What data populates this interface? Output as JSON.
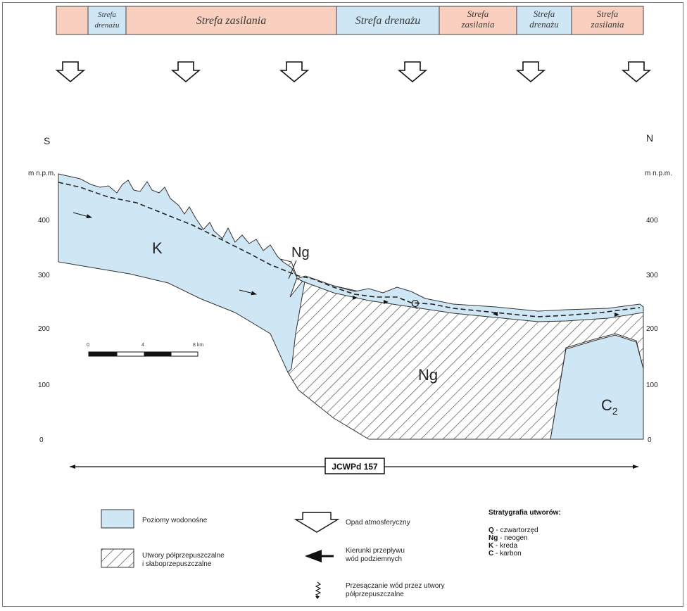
{
  "zones": [
    {
      "lines": [
        ""
      ],
      "kind": "zasilania"
    },
    {
      "lines": [
        "Strefa",
        "drenażu"
      ],
      "kind": "drenazu"
    },
    {
      "lines": [
        "Strefa zasilania"
      ],
      "kind": "zasilania"
    },
    {
      "lines": [
        "Strefa drenażu"
      ],
      "kind": "drenazu"
    },
    {
      "lines": [
        "Strefa",
        "zasilania"
      ],
      "kind": "zasilania"
    },
    {
      "lines": [
        "Strefa",
        "drenażu"
      ],
      "kind": "drenazu"
    },
    {
      "lines": [
        "Strefa",
        "zasilania"
      ],
      "kind": "zasilania"
    }
  ],
  "colors": {
    "zasilania": "#f9d0c0",
    "drenazu": "#cfe6f4",
    "aquifer": "#cfe6f5",
    "outline": "#333333"
  },
  "directions": {
    "left": "S",
    "right": "N"
  },
  "axis": {
    "unit": "m n.p.m.",
    "ticks": [
      "400",
      "300",
      "200",
      "100",
      "0"
    ]
  },
  "units": {
    "K": "K",
    "Ng_upper": "Ng",
    "Ng_lower": "Ng",
    "Q": "Q",
    "C_base": "C",
    "C_sub": "2"
  },
  "scale_bar": {
    "labels": [
      "0",
      "4",
      "8 km"
    ]
  },
  "jcwpd_label": "JCWPd 157",
  "legend": {
    "aquifer": "Poziomy wodonośne",
    "aquitard": [
      "Utwory półprzepuszczalne",
      "i słaboprzepuszczalne"
    ],
    "precip": "Opad atmosferyczny",
    "flow": [
      "Kierunki przepływu",
      "wód podziemnych"
    ],
    "seepage": [
      "Przesączanie wód przez utwory",
      "półprzepuszczalne"
    ],
    "strat_title": "Stratygrafia utworów:",
    "strat": [
      {
        "key": "Q",
        "desc": " - czwartorzęd"
      },
      {
        "key": "Ng",
        "desc": " -  neogen"
      },
      {
        "key": "K",
        "desc": " - kreda"
      },
      {
        "key": "C",
        "desc": " - karbon"
      }
    ]
  }
}
